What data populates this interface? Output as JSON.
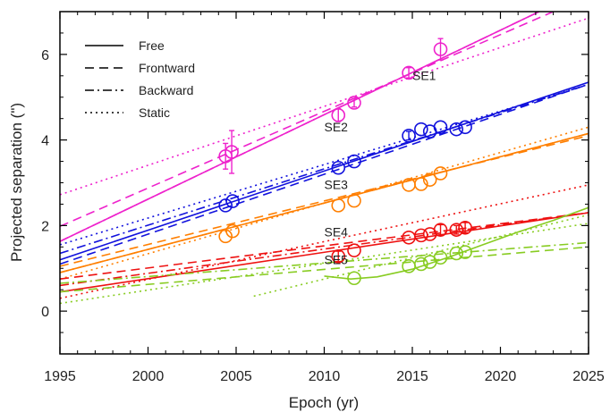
{
  "chart_data": {
    "type": "scatter",
    "xlabel": "Epoch (yr)",
    "ylabel": "Projected separation (\")",
    "xlim": [
      1995,
      2025
    ],
    "ylim": [
      -1,
      7
    ],
    "xticks": [
      1995,
      2000,
      2005,
      2010,
      2015,
      2020,
      2025
    ],
    "yticks": [
      0,
      2,
      4,
      6
    ],
    "legend": {
      "placement": "top-left",
      "entries": [
        {
          "name": "Free",
          "style": "solid"
        },
        {
          "name": "Frontward",
          "style": "dashed"
        },
        {
          "name": "Backward",
          "style": "dashdot"
        },
        {
          "name": "Static",
          "style": "dotted"
        }
      ]
    },
    "series": [
      {
        "name": "SE1",
        "color": "#ee22cc",
        "label_at": [
          2015.0,
          5.4
        ],
        "points": [
          {
            "x": 2004.4,
            "y": 3.62,
            "err": 0.3
          },
          {
            "x": 2004.75,
            "y": 3.72,
            "err": 0.5
          },
          {
            "x": 2010.8,
            "y": 4.58,
            "err": 0.15
          },
          {
            "x": 2011.7,
            "y": 4.87,
            "err": 0.1
          },
          {
            "x": 2014.8,
            "y": 5.57,
            "err": 0.12
          },
          {
            "x": 2016.6,
            "y": 6.12,
            "err": 0.25
          }
        ],
        "fits": {
          "free": [
            [
              1995,
              1.63
            ],
            [
              2022.2,
              7.0
            ]
          ],
          "frontward": [
            [
              1995,
              1.98
            ],
            [
              2023.0,
              7.0
            ]
          ],
          "backward": [
            [
              1995,
              1.63
            ],
            [
              2022.2,
              7.0
            ]
          ],
          "static": [
            [
              1995,
              2.72
            ],
            [
              2025,
              6.85
            ]
          ]
        }
      },
      {
        "name": "SE2",
        "color": "#1111dd",
        "label_at": [
          2010.0,
          4.2
        ],
        "points": [
          {
            "x": 2004.4,
            "y": 2.47,
            "err": 0.0
          },
          {
            "x": 2004.8,
            "y": 2.57,
            "err": 0.0
          },
          {
            "x": 2010.8,
            "y": 3.35,
            "err": 0.0
          },
          {
            "x": 2011.7,
            "y": 3.5,
            "err": 0.0
          },
          {
            "x": 2014.8,
            "y": 4.1,
            "err": 0.1
          },
          {
            "x": 2015.5,
            "y": 4.25,
            "err": 0.0
          },
          {
            "x": 2016.0,
            "y": 4.2,
            "err": 0.0
          },
          {
            "x": 2016.6,
            "y": 4.3,
            "err": 0.0
          },
          {
            "x": 2017.5,
            "y": 4.25,
            "err": 0.0
          },
          {
            "x": 2018.0,
            "y": 4.3,
            "err": 0.0
          }
        ],
        "fits": {
          "free": [
            [
              1995,
              1.2
            ],
            [
              2025,
              5.35
            ]
          ],
          "frontward": [
            [
              1995,
              1.1
            ],
            [
              2025,
              5.3
            ]
          ],
          "backward": [
            [
              1995,
              1.35
            ],
            [
              2025,
              5.3
            ]
          ],
          "static": [
            [
              1995,
              1.55
            ],
            [
              2025,
              5.3
            ]
          ]
        }
      },
      {
        "name": "SE3",
        "color": "#ff7f00",
        "label_at": [
          2010.0,
          2.85
        ],
        "points": [
          {
            "x": 2004.4,
            "y": 1.75,
            "err": 0.0
          },
          {
            "x": 2004.8,
            "y": 1.87,
            "err": 0.0
          },
          {
            "x": 2010.8,
            "y": 2.47,
            "err": 0.0
          },
          {
            "x": 2011.7,
            "y": 2.58,
            "err": 0.0
          },
          {
            "x": 2014.8,
            "y": 2.95,
            "err": 0.0
          },
          {
            "x": 2015.5,
            "y": 2.97,
            "err": 0.0
          },
          {
            "x": 2016.0,
            "y": 3.07,
            "err": 0.0
          },
          {
            "x": 2016.6,
            "y": 3.22,
            "err": 0.0
          }
        ],
        "fits": {
          "free": [
            [
              1995,
              0.9
            ],
            [
              2025,
              4.15
            ]
          ],
          "frontward": [
            [
              1995,
              1.05
            ],
            [
              2025,
              4.1
            ]
          ],
          "backward": [
            [
              1995,
              0.9
            ],
            [
              2025,
              4.15
            ]
          ],
          "static": [
            [
              1995,
              0.75
            ],
            [
              2025,
              4.3
            ]
          ]
        }
      },
      {
        "name": "SE4",
        "color": "#ee1111",
        "label_at": [
          2010.0,
          1.75
        ],
        "points": [
          {
            "x": 2010.8,
            "y": 1.28,
            "err": 0.12
          },
          {
            "x": 2011.7,
            "y": 1.42,
            "err": 0.0
          },
          {
            "x": 2014.8,
            "y": 1.72,
            "err": 0.0
          },
          {
            "x": 2015.5,
            "y": 1.77,
            "err": 0.0
          },
          {
            "x": 2016.0,
            "y": 1.8,
            "err": 0.0
          },
          {
            "x": 2016.6,
            "y": 1.9,
            "err": 0.12
          },
          {
            "x": 2017.5,
            "y": 1.9,
            "err": 0.1
          },
          {
            "x": 2018.0,
            "y": 1.95,
            "err": 0.12
          }
        ],
        "fits": {
          "free": [
            [
              1995,
              0.45
            ],
            [
              2025,
              2.3
            ]
          ],
          "frontward": [
            [
              1995,
              0.75
            ],
            [
              2025,
              2.3
            ]
          ],
          "backward": [
            [
              1995,
              0.6
            ],
            [
              2025,
              2.3
            ]
          ],
          "static": [
            [
              1995,
              0.3
            ],
            [
              2025,
              2.95
            ]
          ]
        }
      },
      {
        "name": "SE5",
        "color": "#88cc22",
        "label_at": [
          2010.0,
          1.1
        ],
        "points": [
          {
            "x": 2011.7,
            "y": 0.77,
            "err": 0.0
          },
          {
            "x": 2014.8,
            "y": 1.05,
            "err": 0.0
          },
          {
            "x": 2015.5,
            "y": 1.1,
            "err": 0.0
          },
          {
            "x": 2016.0,
            "y": 1.15,
            "err": 0.0
          },
          {
            "x": 2016.6,
            "y": 1.25,
            "err": 0.0
          },
          {
            "x": 2017.5,
            "y": 1.35,
            "err": 0.0
          },
          {
            "x": 2018.0,
            "y": 1.38,
            "err": 0.0
          }
        ],
        "fits": {
          "free": [
            [
              2010.0,
              0.82
            ],
            [
              2011.5,
              0.75
            ],
            [
              2013.0,
              0.8
            ],
            [
              2015.0,
              0.98
            ],
            [
              2017.0,
              1.25
            ],
            [
              2019.0,
              1.55
            ],
            [
              2021.0,
              1.85
            ],
            [
              2023.0,
              2.12
            ],
            [
              2025,
              2.42
            ]
          ],
          "frontward": [
            [
              1995,
              0.45
            ],
            [
              2025,
              1.5
            ]
          ],
          "backward": [
            [
              1995,
              0.65
            ],
            [
              2025,
              1.6
            ]
          ],
          "static": [
            [
              2006.0,
              0.35
            ],
            [
              2025,
              2.25
            ]
          ],
          "staticLow": [
            [
              1995,
              0.18
            ],
            [
              2025,
              2.05
            ]
          ]
        }
      }
    ]
  }
}
